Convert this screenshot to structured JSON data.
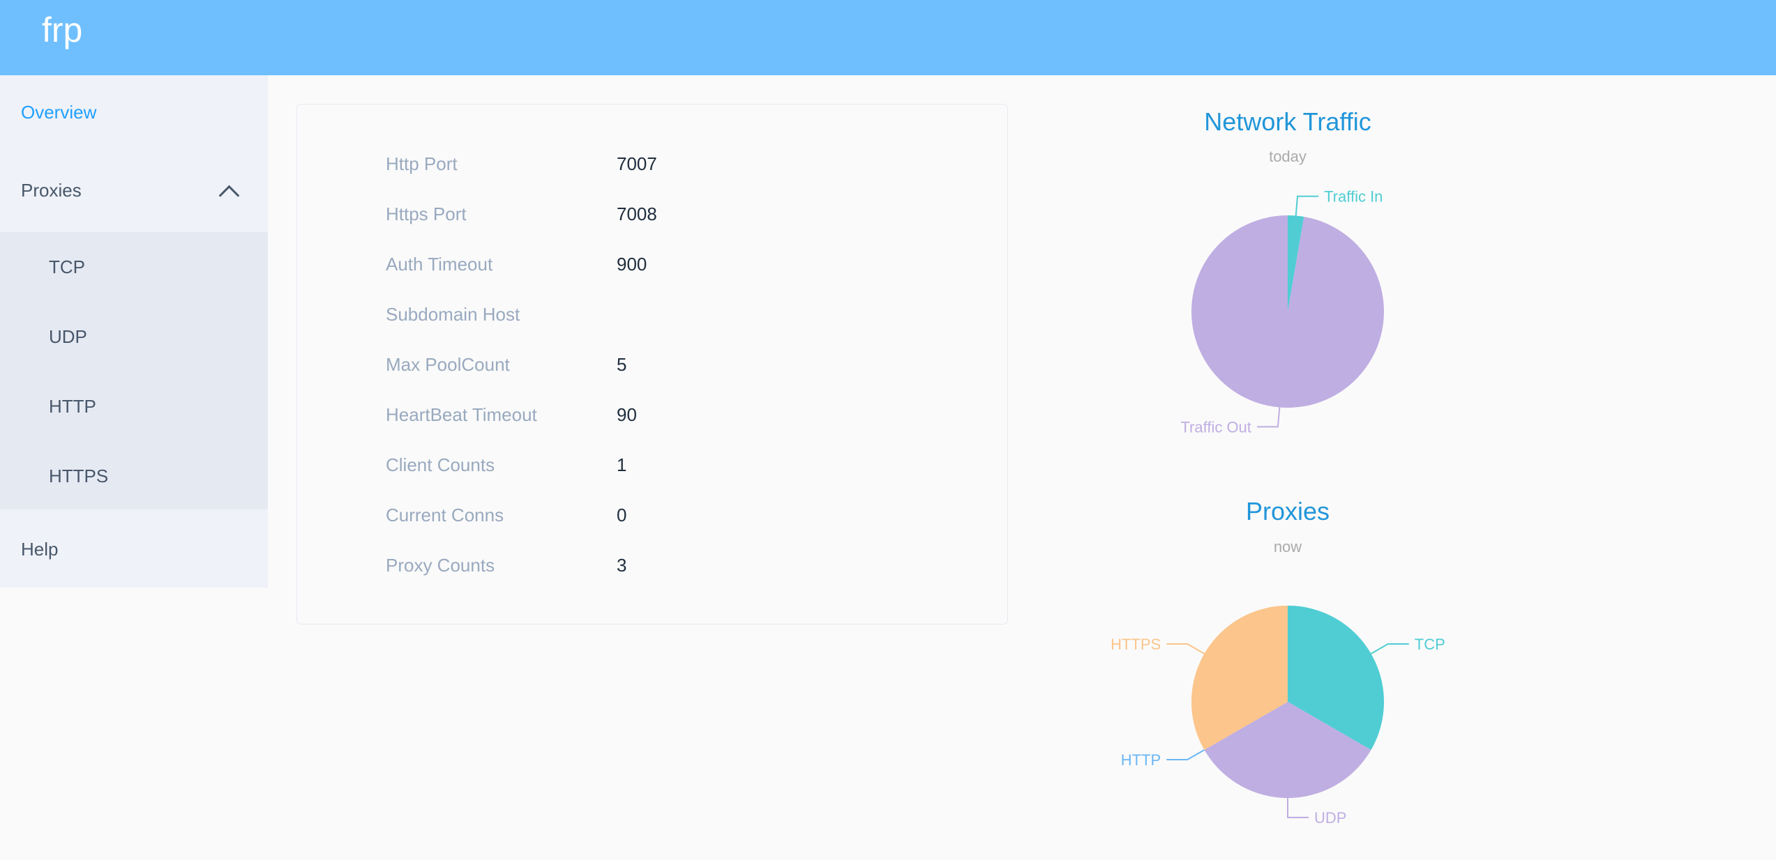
{
  "header": {
    "brand": "frp"
  },
  "sidebar": {
    "overview": "Overview",
    "proxies": "Proxies",
    "proxy_items": [
      "TCP",
      "UDP",
      "HTTP",
      "HTTPS"
    ],
    "help": "Help"
  },
  "server_info": [
    {
      "label": "Http Port",
      "value": "7007"
    },
    {
      "label": "Https Port",
      "value": "7008"
    },
    {
      "label": "Auth Timeout",
      "value": "900"
    },
    {
      "label": "Subdomain Host",
      "value": ""
    },
    {
      "label": "Max PoolCount",
      "value": "5"
    },
    {
      "label": "HeartBeat Timeout",
      "value": "90"
    },
    {
      "label": "Client Counts",
      "value": "1"
    },
    {
      "label": "Current Conns",
      "value": "0"
    },
    {
      "label": "Proxy Counts",
      "value": "3"
    }
  ],
  "colors": {
    "header": "#6fbffe",
    "active": "#20a0ff",
    "title": "#2196d9",
    "subtitle": "#aaaaaa"
  },
  "chart_data": [
    {
      "type": "pie",
      "title": "Network Traffic",
      "subtitle": "today",
      "categories": [
        "Traffic In",
        "Traffic Out"
      ],
      "values": [
        2.7,
        97.3
      ],
      "colors": [
        "#4fcdd3",
        "#bfaee2"
      ]
    },
    {
      "type": "pie",
      "title": "Proxies",
      "subtitle": "now",
      "categories": [
        "TCP",
        "UDP",
        "HTTP",
        "HTTPS"
      ],
      "values": [
        1,
        1,
        0,
        1
      ],
      "colors": [
        "#4fcdd3",
        "#bfaee2",
        "#6ab7f5",
        "#fbc58b"
      ]
    }
  ]
}
